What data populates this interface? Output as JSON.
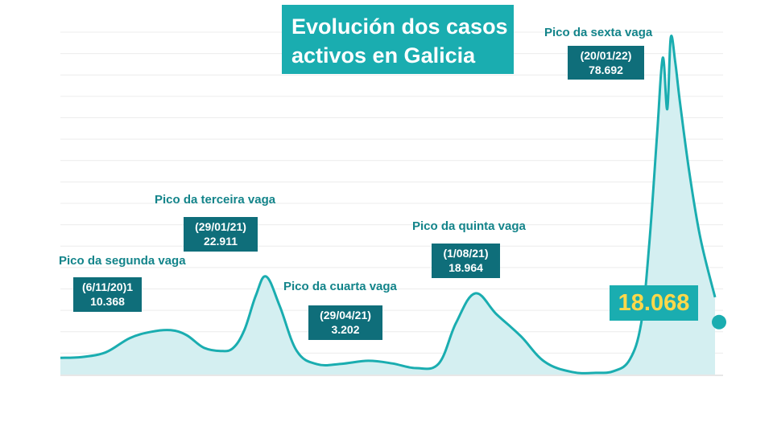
{
  "title": {
    "line1": "Evolución dos casos",
    "line2": "activos en Galicia"
  },
  "colors": {
    "line": "#1aadb0",
    "area": "#d4eff1",
    "label_text": "#13848a",
    "box_dark": "#0f6e7a",
    "title_bg": "#1aadb0",
    "current_value": "#ffd84a"
  },
  "annotations": [
    {
      "label": "Pico da segunda vaga",
      "date": "(6/11/20)1",
      "value": "10.368"
    },
    {
      "label": "Pico da terceira vaga",
      "date": "(29/01/21)",
      "value": "22.911"
    },
    {
      "label": "Pico da cuarta vaga",
      "date": "(29/04/21)",
      "value": "3.202"
    },
    {
      "label": "Pico da quinta vaga",
      "date": "(1/08/21)",
      "value": "18.964"
    },
    {
      "label": "Pico da sexta vaga",
      "date": "(20/01/22)",
      "value": "78.692"
    }
  ],
  "current_value": "18.068",
  "chart_data": {
    "type": "area",
    "title": "Evolución dos casos activos en Galicia",
    "xlabel": "",
    "ylabel": "",
    "grid": true,
    "ylim": [
      0,
      80000
    ],
    "series": [
      {
        "x": [
          "2020-08-01",
          "2020-08-20",
          "2020-09-10",
          "2020-10-01",
          "2020-10-20",
          "2020-11-06",
          "2020-11-20",
          "2020-12-05",
          "2020-12-20",
          "2020-12-31",
          "2021-01-10",
          "2021-01-20",
          "2021-01-29",
          "2021-02-10",
          "2021-02-25",
          "2021-03-15",
          "2021-04-05",
          "2021-04-29",
          "2021-05-20",
          "2021-06-10",
          "2021-06-30",
          "2021-07-15",
          "2021-08-01",
          "2021-08-20",
          "2021-09-10",
          "2021-10-01",
          "2021-10-25",
          "2021-11-15",
          "2021-12-01",
          "2021-12-15",
          "2021-12-25",
          "2022-01-01",
          "2022-01-08",
          "2022-01-13",
          "2022-01-17",
          "2022-01-20",
          "2022-01-24",
          "2022-01-28",
          "2022-02-05",
          "2022-02-15",
          "2022-02-28"
        ],
        "values": [
          3900,
          4100,
          5200,
          8500,
          10000,
          10368,
          9200,
          6300,
          5500,
          6200,
          10500,
          18500,
          22911,
          16000,
          5500,
          2400,
          2500,
          3202,
          2600,
          1500,
          2600,
          12000,
          18964,
          14000,
          9000,
          3000,
          600,
          400,
          800,
          3500,
          12000,
          30000,
          56000,
          74000,
          62000,
          78692,
          73000,
          64000,
          48000,
          32000,
          18068
        ]
      }
    ]
  }
}
